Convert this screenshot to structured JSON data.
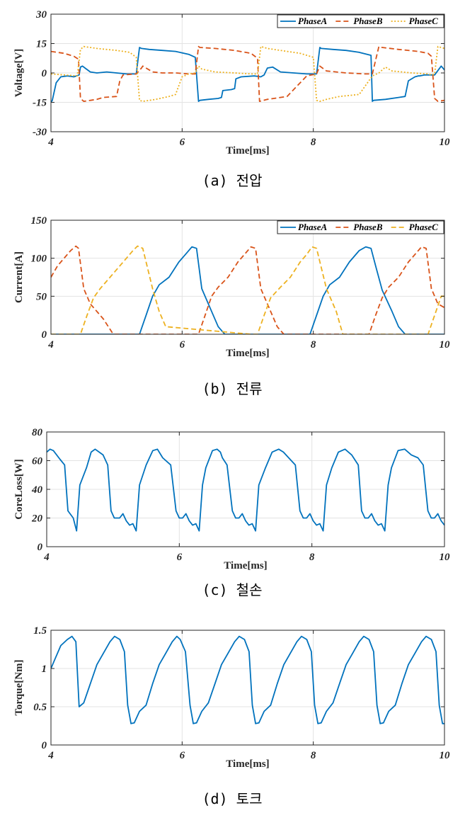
{
  "chart_data": [
    {
      "type": "line",
      "caption": "(a) 전압",
      "xlabel": "Time[ms]",
      "ylabel": "Voltage[V]",
      "xlim": [
        4,
        10
      ],
      "ylim": [
        -30,
        30
      ],
      "xticks": [
        4,
        6,
        8,
        10
      ],
      "yticks": [
        -30,
        -15,
        0,
        15,
        30
      ],
      "grid": true,
      "legend_position": "top-right",
      "series": [
        {
          "name": "PhaseA",
          "color": "#0072BD",
          "dash": "solid",
          "x": [
            4.0,
            4.02,
            4.08,
            4.15,
            4.25,
            4.35,
            4.43,
            4.45,
            4.48,
            4.52,
            4.6,
            4.7,
            4.85,
            5.0,
            5.15,
            5.3,
            5.35,
            5.38,
            5.5,
            5.7,
            5.9,
            6.1,
            6.2,
            6.25,
            6.27,
            6.4,
            6.55,
            6.6,
            6.62,
            6.75,
            6.8,
            6.82,
            6.9,
            7.1,
            7.2,
            7.25,
            7.3,
            7.38,
            7.5,
            7.7,
            7.9,
            8.05,
            8.1,
            8.12,
            8.3,
            8.5,
            8.7,
            8.88,
            8.9,
            8.92,
            9.1,
            9.3,
            9.4,
            9.45,
            9.55,
            9.6,
            9.62,
            9.7,
            9.85,
            9.95,
            10.0
          ],
          "y": [
            -15.0,
            -14.0,
            -5.0,
            -2.0,
            -1.5,
            -2.0,
            -1.0,
            3.0,
            3.5,
            2.5,
            0.5,
            0.0,
            0.5,
            0.0,
            -0.5,
            -0.5,
            13.0,
            12.5,
            12.0,
            11.5,
            11.0,
            9.5,
            8.0,
            -14.5,
            -14.0,
            -13.5,
            -13.0,
            -12.5,
            -9.0,
            -8.5,
            -8.0,
            -3.0,
            -2.0,
            -1.5,
            -2.0,
            -1.0,
            2.5,
            3.0,
            0.5,
            0.0,
            -0.5,
            -0.5,
            13.0,
            12.5,
            12.0,
            11.5,
            10.5,
            9.0,
            -14.5,
            -14.0,
            -13.5,
            -12.5,
            -12.0,
            -4.0,
            -2.0,
            -1.5,
            -1.5,
            -1.0,
            -1.0,
            3.5,
            1.5
          ]
        },
        {
          "name": "PhaseB",
          "color": "#D95319",
          "dash": "dashed",
          "x": [
            4.0,
            4.2,
            4.35,
            4.42,
            4.45,
            4.5,
            4.7,
            4.8,
            5.0,
            5.05,
            5.1,
            5.3,
            5.38,
            5.4,
            5.55,
            5.7,
            5.9,
            6.1,
            6.2,
            6.25,
            6.27,
            6.5,
            6.8,
            7.05,
            7.15,
            7.18,
            7.3,
            7.4,
            7.6,
            7.9,
            8.05,
            8.1,
            8.2,
            8.5,
            8.8,
            8.9,
            9.0,
            9.05,
            9.3,
            9.6,
            9.75,
            9.8,
            9.85,
            9.9,
            10.0
          ],
          "y": [
            11.0,
            10.0,
            8.5,
            7.0,
            -13.0,
            -14.5,
            -13.5,
            -12.5,
            -12.0,
            -4.0,
            -1.0,
            -0.5,
            2.5,
            3.5,
            0.5,
            0.0,
            0.0,
            -0.5,
            -0.5,
            13.5,
            13.0,
            12.5,
            11.5,
            10.0,
            7.5,
            -14.5,
            -13.5,
            -13.0,
            -12.0,
            -1.5,
            -0.5,
            3.5,
            1.0,
            0.0,
            -0.5,
            -0.5,
            13.5,
            13.0,
            12.0,
            11.0,
            10.0,
            8.5,
            -13.0,
            -14.5,
            -14.0
          ]
        },
        {
          "name": "PhaseC",
          "color": "#EDB120",
          "dash": "dotted",
          "x": [
            4.0,
            4.2,
            4.4,
            4.45,
            4.5,
            4.7,
            5.0,
            5.2,
            5.3,
            5.35,
            5.4,
            5.6,
            5.8,
            5.9,
            6.0,
            6.1,
            6.2,
            6.25,
            6.3,
            6.5,
            6.8,
            7.05,
            7.15,
            7.2,
            7.25,
            7.3,
            7.5,
            7.8,
            8.0,
            8.05,
            8.1,
            8.2,
            8.4,
            8.7,
            8.9,
            9.0,
            9.1,
            9.2,
            9.5,
            9.75,
            9.8,
            9.85,
            9.9,
            10.0
          ],
          "y": [
            -0.5,
            -1.0,
            -1.5,
            12.0,
            13.5,
            12.5,
            11.5,
            10.5,
            8.0,
            -14.0,
            -14.5,
            -13.5,
            -12.0,
            -11.0,
            -2.0,
            -0.5,
            0.0,
            3.5,
            2.0,
            0.5,
            0.0,
            -0.5,
            -0.5,
            13.5,
            13.0,
            12.5,
            11.5,
            10.0,
            8.0,
            -14.0,
            -14.5,
            -13.5,
            -12.0,
            -11.0,
            -1.5,
            0.0,
            3.0,
            1.0,
            0.0,
            -0.5,
            -1.0,
            -0.5,
            13.5,
            12.5
          ]
        }
      ]
    },
    {
      "type": "line",
      "caption": "(b) 전류",
      "xlabel": "Time[ms]",
      "ylabel": "Current[A]",
      "xlim": [
        4,
        10
      ],
      "ylim": [
        0,
        150
      ],
      "xticks": [
        4,
        6,
        8,
        10
      ],
      "yticks": [
        0,
        50,
        100,
        150
      ],
      "grid": true,
      "legend_position": "top-right",
      "series": [
        {
          "name": "PhaseA",
          "color": "#0072BD",
          "dash": "solid",
          "x": [
            4.0,
            5.35,
            5.45,
            5.55,
            5.65,
            5.8,
            5.95,
            6.05,
            6.15,
            6.22,
            6.3,
            6.45,
            6.55,
            6.65,
            7.95,
            8.05,
            8.15,
            8.25,
            8.4,
            8.55,
            8.7,
            8.8,
            8.88,
            8.95,
            9.05,
            9.2,
            9.3,
            9.4,
            10.0
          ],
          "y": [
            0,
            0,
            25,
            50,
            65,
            75,
            95,
            105,
            115,
            113,
            60,
            30,
            10,
            0,
            0,
            25,
            50,
            65,
            75,
            95,
            110,
            115,
            113,
            90,
            58,
            30,
            10,
            0,
            0
          ]
        },
        {
          "name": "PhaseB",
          "color": "#D95319",
          "dash": "dashed",
          "x": [
            4.0,
            4.1,
            4.2,
            4.3,
            4.38,
            4.42,
            4.5,
            4.6,
            4.8,
            4.95,
            6.25,
            6.35,
            6.45,
            6.55,
            6.7,
            6.85,
            6.95,
            7.05,
            7.12,
            7.2,
            7.35,
            7.45,
            7.55,
            8.85,
            8.95,
            9.05,
            9.15,
            9.3,
            9.45,
            9.55,
            9.65,
            9.72,
            9.8,
            9.9,
            10.0
          ],
          "y": [
            75,
            90,
            100,
            110,
            116,
            113,
            60,
            40,
            20,
            0,
            0,
            25,
            50,
            62,
            75,
            95,
            105,
            115,
            113,
            60,
            30,
            10,
            0,
            0,
            25,
            48,
            62,
            75,
            95,
            105,
            115,
            113,
            60,
            40,
            35
          ]
        },
        {
          "name": "PhaseC",
          "color": "#EDB120",
          "dash": "dashed",
          "x": [
            4.0,
            4.45,
            4.55,
            4.65,
            4.75,
            4.85,
            5.0,
            5.15,
            5.25,
            5.32,
            5.4,
            5.55,
            5.65,
            5.75,
            7.05,
            7.15,
            7.25,
            7.35,
            7.5,
            7.65,
            7.8,
            7.9,
            7.98,
            8.05,
            8.2,
            8.35,
            8.45,
            9.75,
            9.85,
            9.95,
            10.0
          ],
          "y": [
            0,
            0,
            25,
            48,
            60,
            70,
            85,
            100,
            110,
            116,
            113,
            60,
            30,
            10,
            0,
            0,
            25,
            48,
            62,
            75,
            95,
            105,
            115,
            113,
            60,
            30,
            0,
            0,
            25,
            50,
            50
          ]
        }
      ]
    },
    {
      "type": "line",
      "caption": "(c) 철손",
      "xlabel": "Time[ms]",
      "ylabel": "CoreLoss[W]",
      "xlim": [
        4,
        10
      ],
      "ylim": [
        0,
        80
      ],
      "xticks": [
        4,
        6,
        8,
        10
      ],
      "yticks": [
        0,
        20,
        40,
        60,
        80
      ],
      "grid": true,
      "series": [
        {
          "color": "#0072BD",
          "dash": "solid",
          "x": [
            4.0,
            4.05,
            4.1,
            4.2,
            4.27,
            4.32,
            4.4,
            4.45,
            4.5,
            4.6,
            4.67,
            4.73,
            4.85,
            4.92,
            4.97,
            5.02,
            5.1,
            5.15,
            5.2,
            5.25,
            5.3,
            5.35,
            5.4,
            5.5,
            5.6,
            5.67,
            5.75,
            5.87,
            5.95,
            6.0,
            6.05,
            6.1,
            6.15,
            6.2,
            6.25,
            6.3,
            6.35,
            6.4,
            6.5,
            6.57,
            6.62,
            6.65,
            6.72,
            6.8,
            6.85,
            6.9,
            6.95,
            7.0,
            7.05,
            7.1,
            7.15,
            7.2,
            7.3,
            7.4,
            7.5,
            7.57,
            7.65,
            7.75,
            7.82,
            7.87,
            7.92,
            7.97,
            8.02,
            8.07,
            8.12,
            8.17,
            8.22,
            8.3,
            8.4,
            8.5,
            8.6,
            8.7,
            8.75,
            8.8,
            8.85,
            8.9,
            8.95,
            9.0,
            9.05,
            9.1,
            9.15,
            9.2,
            9.3,
            9.4,
            9.5,
            9.6,
            9.68,
            9.75,
            9.8,
            9.85,
            9.9,
            9.95,
            10.0
          ],
          "y": [
            66,
            68,
            67,
            61,
            57,
            25,
            20,
            11,
            43,
            55,
            66,
            68,
            64,
            57,
            25,
            20,
            20,
            23,
            18,
            15,
            16,
            11,
            43,
            57,
            67,
            68,
            62,
            57,
            25,
            20,
            20,
            23,
            18,
            15,
            16,
            11,
            43,
            55,
            67,
            68,
            66,
            62,
            57,
            25,
            20,
            20,
            23,
            18,
            15,
            16,
            11,
            43,
            55,
            66,
            68,
            66,
            62,
            57,
            25,
            20,
            20,
            23,
            18,
            15,
            16,
            11,
            43,
            55,
            66,
            68,
            64,
            57,
            25,
            20,
            20,
            23,
            18,
            15,
            16,
            11,
            43,
            55,
            67,
            68,
            64,
            62,
            57,
            25,
            20,
            20,
            23,
            18,
            15
          ]
        }
      ]
    },
    {
      "type": "line",
      "caption": "(d) 토크",
      "xlabel": "Time[ms]",
      "ylabel": "Torque[Nm]",
      "xlim": [
        4,
        10
      ],
      "ylim": [
        0,
        1.5
      ],
      "xticks": [
        4,
        6,
        8,
        10
      ],
      "yticks": [
        0,
        0.5,
        1,
        1.5
      ],
      "grid": true,
      "series": [
        {
          "color": "#0072BD",
          "dash": "solid",
          "x": [
            4.0,
            4.05,
            4.15,
            4.25,
            4.32,
            4.38,
            4.43,
            4.5,
            4.6,
            4.7,
            4.8,
            4.9,
            4.97,
            5.05,
            5.12,
            5.17,
            5.22,
            5.27,
            5.35,
            5.45,
            5.55,
            5.65,
            5.75,
            5.85,
            5.92,
            5.97,
            6.05,
            6.12,
            6.17,
            6.22,
            6.3,
            6.4,
            6.5,
            6.6,
            6.7,
            6.8,
            6.87,
            6.95,
            7.02,
            7.07,
            7.12,
            7.17,
            7.25,
            7.35,
            7.45,
            7.55,
            7.65,
            7.75,
            7.82,
            7.9,
            7.97,
            8.02,
            8.07,
            8.12,
            8.2,
            8.3,
            8.4,
            8.5,
            8.6,
            8.7,
            8.77,
            8.85,
            8.92,
            8.97,
            9.02,
            9.07,
            9.15,
            9.25,
            9.35,
            9.45,
            9.55,
            9.65,
            9.72,
            9.8,
            9.87,
            9.92,
            9.97,
            10.0
          ],
          "y": [
            1.0,
            1.1,
            1.3,
            1.38,
            1.42,
            1.35,
            0.5,
            0.55,
            0.8,
            1.05,
            1.2,
            1.35,
            1.42,
            1.38,
            1.22,
            0.52,
            0.28,
            0.29,
            0.44,
            0.52,
            0.8,
            1.05,
            1.2,
            1.35,
            1.42,
            1.38,
            1.22,
            0.52,
            0.28,
            0.29,
            0.44,
            0.55,
            0.8,
            1.05,
            1.2,
            1.35,
            1.42,
            1.38,
            1.22,
            0.52,
            0.28,
            0.29,
            0.44,
            0.52,
            0.8,
            1.05,
            1.2,
            1.35,
            1.42,
            1.38,
            1.22,
            0.52,
            0.28,
            0.29,
            0.44,
            0.55,
            0.8,
            1.05,
            1.2,
            1.35,
            1.42,
            1.38,
            1.22,
            0.52,
            0.28,
            0.29,
            0.44,
            0.52,
            0.8,
            1.05,
            1.2,
            1.35,
            1.42,
            1.38,
            1.22,
            0.52,
            0.28,
            0.28
          ]
        }
      ]
    }
  ]
}
